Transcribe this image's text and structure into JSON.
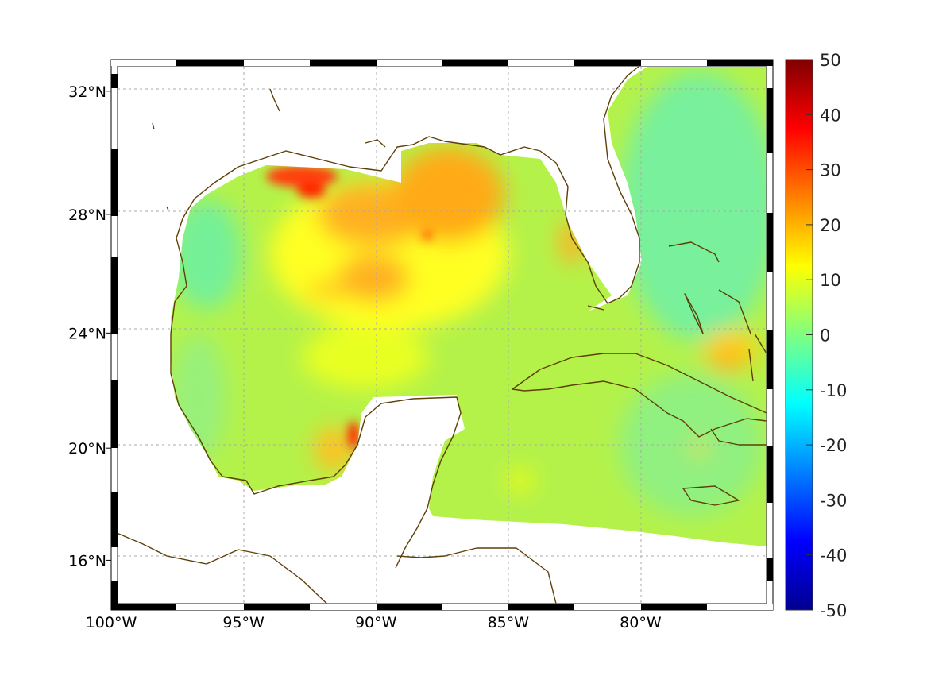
{
  "map": {
    "projection": "mercator",
    "lon_range": [
      -100,
      -75
    ],
    "lat_range": [
      14.2,
      33
    ],
    "lon_labels": [
      {
        "lon": -100,
        "text": "100°W"
      },
      {
        "lon": -95,
        "text": "95°W"
      },
      {
        "lon": -90,
        "text": "90°W"
      },
      {
        "lon": -85,
        "text": "85°W"
      },
      {
        "lon": -80,
        "text": "80°W"
      }
    ],
    "lat_labels": [
      {
        "lat": 32,
        "text": "32°N"
      },
      {
        "lat": 28,
        "text": "28°N"
      },
      {
        "lat": 24,
        "text": "24°N"
      },
      {
        "lat": 20,
        "text": "20°N"
      },
      {
        "lat": 16,
        "text": "16°N"
      }
    ],
    "coastline_color": "#5e3f08"
  },
  "colorbar": {
    "colormap": "jet",
    "min": -50,
    "max": 50,
    "ticks": [
      "50",
      "40",
      "30",
      "20",
      "10",
      "0",
      "-10",
      "-20",
      "-30",
      "-40",
      "-50"
    ]
  }
}
